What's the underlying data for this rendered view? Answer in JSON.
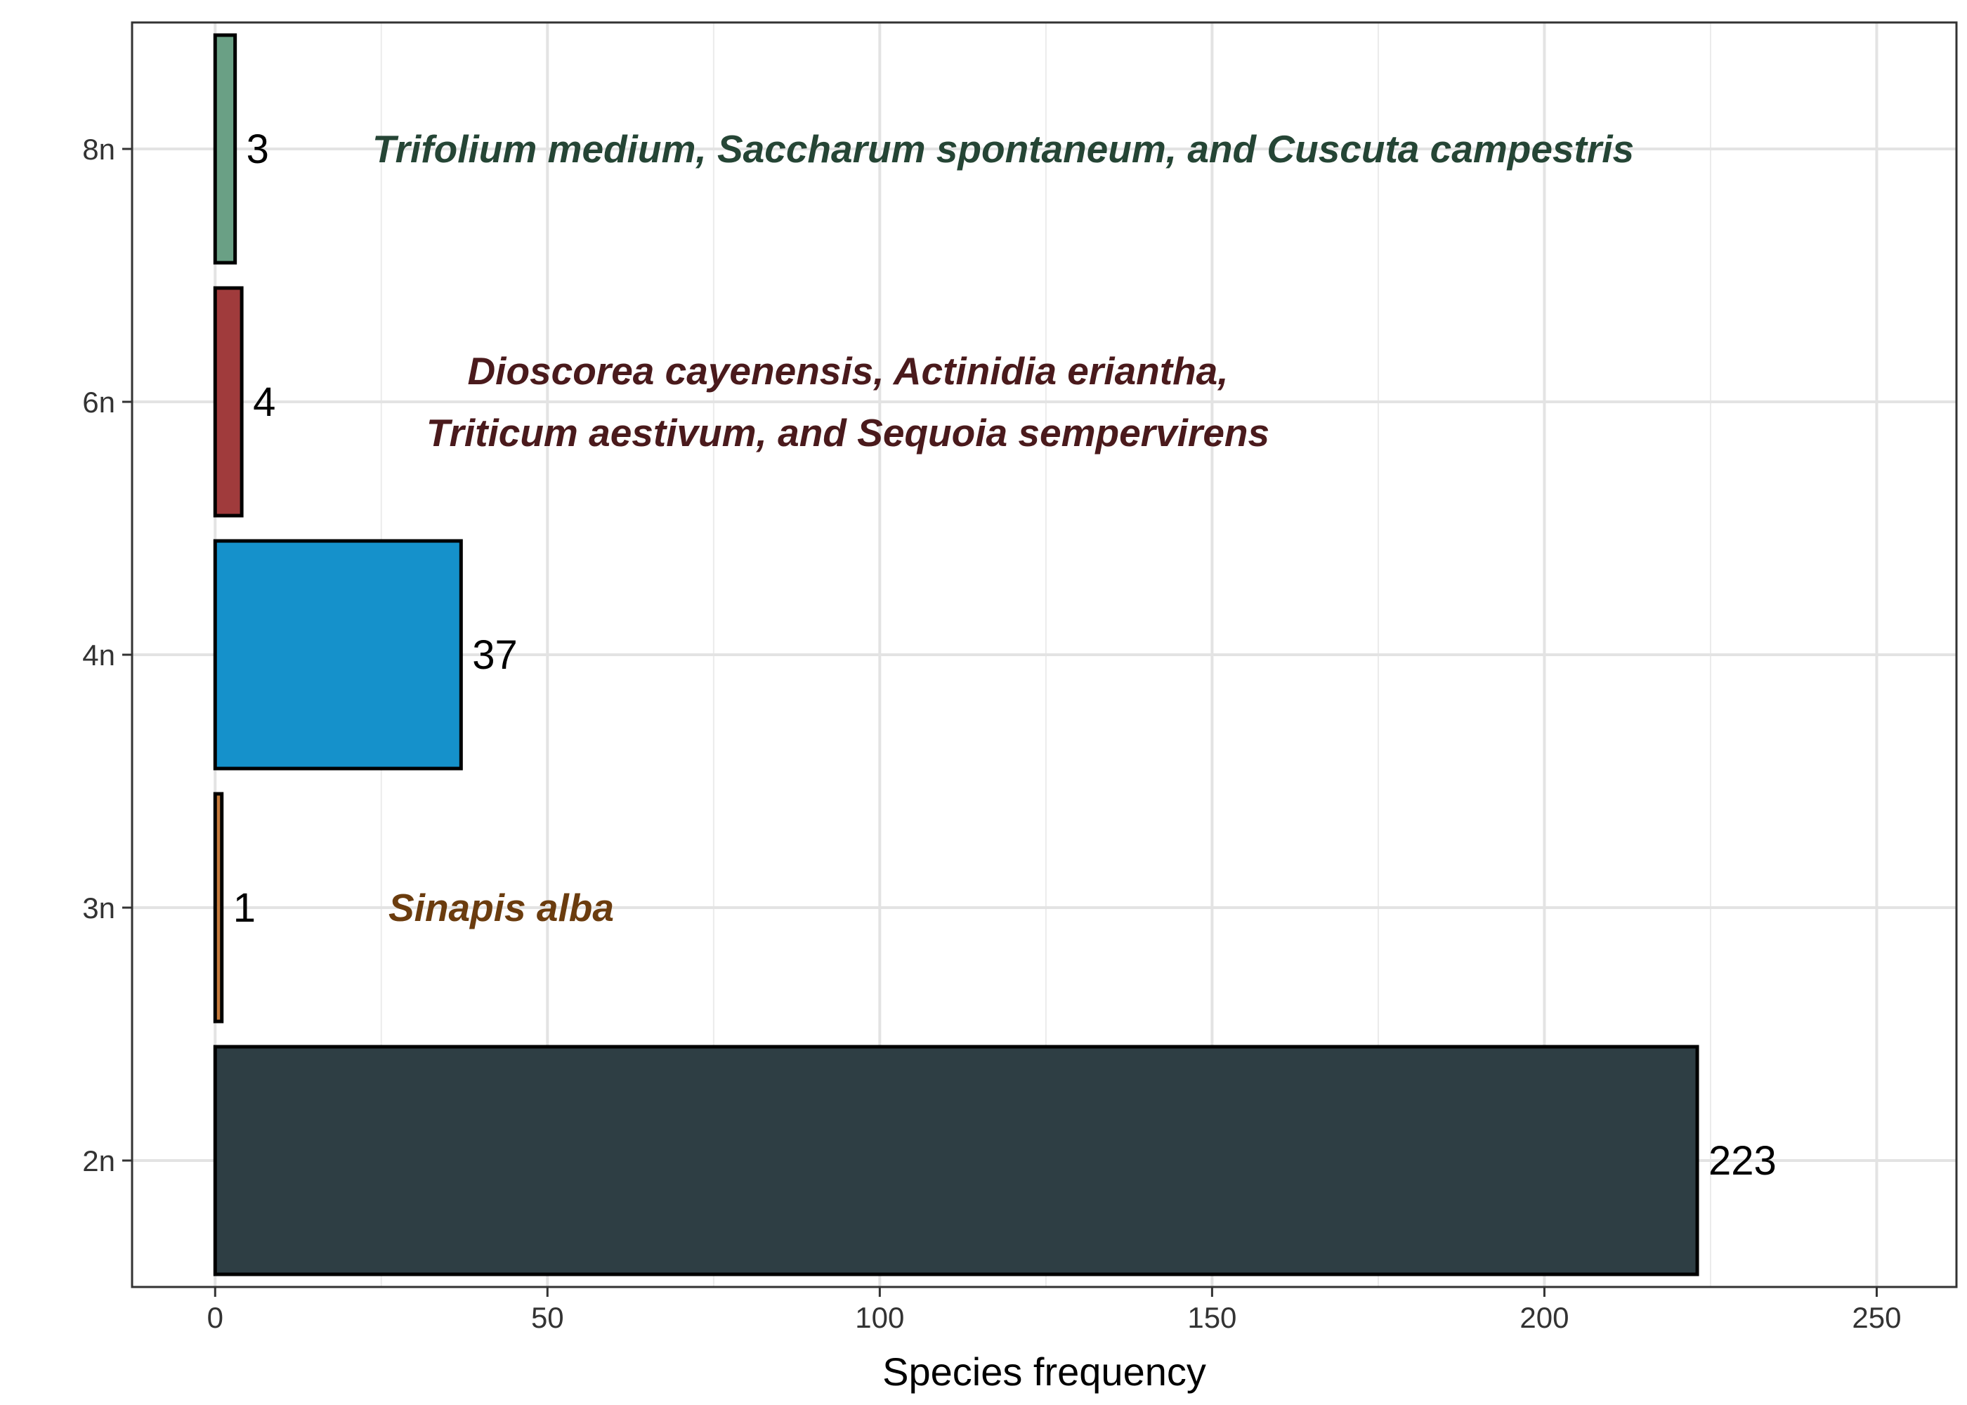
{
  "chart_data": {
    "type": "bar",
    "orientation": "horizontal",
    "title": "",
    "xlabel": "Species frequency",
    "ylabel": "",
    "xlim": [
      -12.5,
      262
    ],
    "x_ticks": [
      0,
      50,
      100,
      150,
      200,
      250
    ],
    "grid": true,
    "categories": [
      "2n",
      "3n",
      "4n",
      "6n",
      "8n"
    ],
    "values": [
      223,
      1,
      37,
      4,
      3
    ],
    "bar_colors": [
      "#2e3e44",
      "#c47a3c",
      "#1591cb",
      "#a03b3c",
      "#6aa085"
    ],
    "annotations": [
      {
        "category": "8n",
        "lines": [
          "Trifolium medium, Saccharum spontaneum, and Cuscuta campestris"
        ],
        "color": "#254535"
      },
      {
        "category": "6n",
        "lines": [
          "Dioscorea cayenensis, Actinidia eriantha,",
          "Triticum aestivum, and Sequoia sempervirens"
        ],
        "color": "#4a1a1c"
      },
      {
        "category": "3n",
        "lines": [
          "Sinapis alba"
        ],
        "color": "#6b3c0e"
      }
    ]
  }
}
